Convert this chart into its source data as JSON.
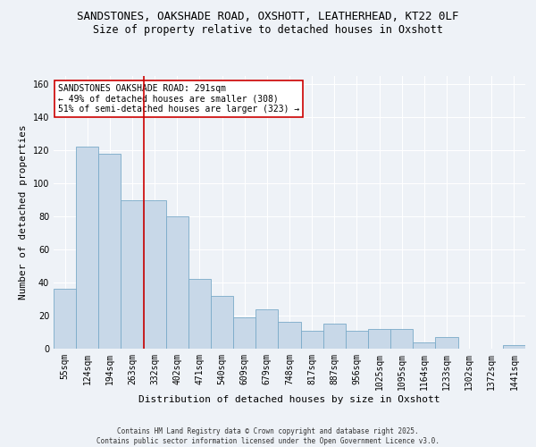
{
  "title_line1": "SANDSTONES, OAKSHADE ROAD, OXSHOTT, LEATHERHEAD, KT22 0LF",
  "title_line2": "Size of property relative to detached houses in Oxshott",
  "xlabel": "Distribution of detached houses by size in Oxshott",
  "ylabel": "Number of detached properties",
  "categories": [
    "55sqm",
    "124sqm",
    "194sqm",
    "263sqm",
    "332sqm",
    "402sqm",
    "471sqm",
    "540sqm",
    "609sqm",
    "679sqm",
    "748sqm",
    "817sqm",
    "887sqm",
    "956sqm",
    "1025sqm",
    "1095sqm",
    "1164sqm",
    "1233sqm",
    "1302sqm",
    "1372sqm",
    "1441sqm"
  ],
  "values": [
    36,
    122,
    118,
    90,
    90,
    80,
    42,
    32,
    19,
    24,
    16,
    11,
    15,
    11,
    12,
    12,
    4,
    7,
    0,
    0,
    2
  ],
  "bar_color": "#c8d8e8",
  "bar_edge_color": "#7aaac8",
  "red_line_x": 3.5,
  "ylim": [
    0,
    165
  ],
  "yticks": [
    0,
    20,
    40,
    60,
    80,
    100,
    120,
    140,
    160
  ],
  "annotation_text": "SANDSTONES OAKSHADE ROAD: 291sqm\n← 49% of detached houses are smaller (308)\n51% of semi-detached houses are larger (323) →",
  "annotation_box_color": "#ffffff",
  "annotation_box_edge": "#cc0000",
  "background_color": "#eef2f7",
  "grid_color": "#ffffff",
  "footer_text": "Contains HM Land Registry data © Crown copyright and database right 2025.\nContains public sector information licensed under the Open Government Licence v3.0.",
  "title_fontsize": 9,
  "subtitle_fontsize": 8.5,
  "tick_fontsize": 7,
  "ylabel_fontsize": 8,
  "xlabel_fontsize": 8,
  "annotation_fontsize": 7,
  "footer_fontsize": 5.5
}
